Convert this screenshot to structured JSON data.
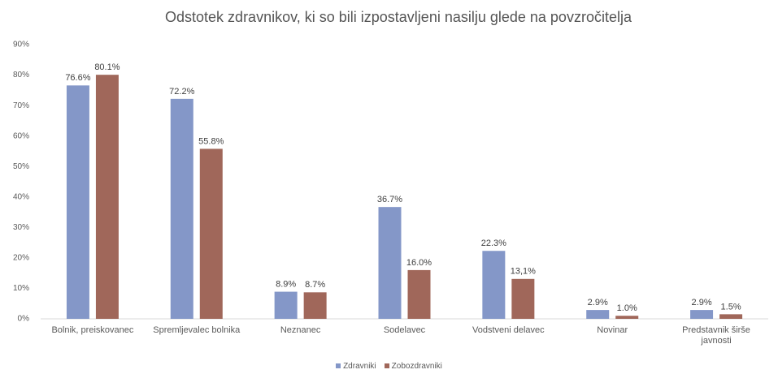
{
  "chart_data": {
    "type": "bar",
    "title": "Odstotek zdravnikov, ki so bili izpostavljeni nasilju glede na povzročitelja",
    "categories": [
      "Bolnik, preiskovanec",
      "Spremljevalec bolnika",
      "Neznanec",
      "Sodelavec",
      "Vodstveni delavec",
      "Novinar",
      "Predstavnik širše javnosti"
    ],
    "series": [
      {
        "name": "Zdravniki",
        "color": "#8497c8",
        "values": [
          76.6,
          72.2,
          8.9,
          36.7,
          22.3,
          2.9,
          2.9
        ],
        "value_labels": [
          "76.6%",
          "72.2%",
          "8.9%",
          "36.7%",
          "22.3%",
          "2.9%",
          "2.9%"
        ]
      },
      {
        "name": "Zobozdravniki",
        "color": "#a0675a",
        "values": [
          80.1,
          55.8,
          8.7,
          16.0,
          13.1,
          1.0,
          1.5
        ],
        "value_labels": [
          "80.1%",
          "55.8%",
          "8.7%",
          "16.0%",
          "13,1%",
          "1.0%",
          "1.5%"
        ]
      }
    ],
    "ylim": [
      0,
      90
    ],
    "yticks": [
      {
        "value": 0,
        "label": "0%"
      },
      {
        "value": 10,
        "label": "10%"
      },
      {
        "value": 20,
        "label": "20%"
      },
      {
        "value": 30,
        "label": "30%"
      },
      {
        "value": 40,
        "label": "40%"
      },
      {
        "value": 50,
        "label": "50%"
      },
      {
        "value": 60,
        "label": "60%"
      },
      {
        "value": 70,
        "label": "70%"
      },
      {
        "value": 80,
        "label": "80%"
      },
      {
        "value": 90,
        "label": "90%"
      }
    ],
    "grid": false
  }
}
